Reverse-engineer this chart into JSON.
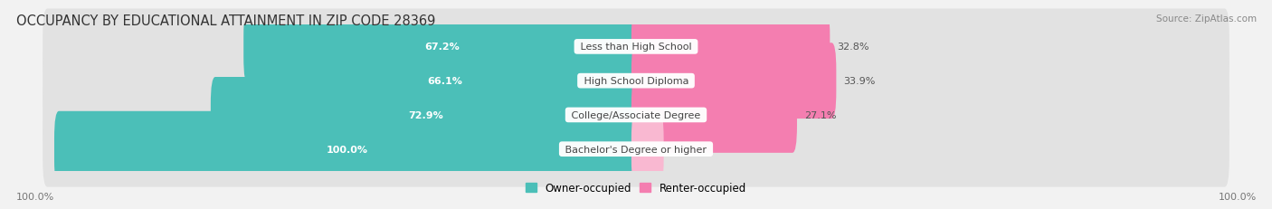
{
  "title": "OCCUPANCY BY EDUCATIONAL ATTAINMENT IN ZIP CODE 28369",
  "source": "Source: ZipAtlas.com",
  "categories": [
    "Less than High School",
    "High School Diploma",
    "College/Associate Degree",
    "Bachelor's Degree or higher"
  ],
  "owner_pct": [
    67.2,
    66.1,
    72.9,
    100.0
  ],
  "renter_pct": [
    32.8,
    33.9,
    27.1,
    0.0
  ],
  "owner_color": "#4BBFB8",
  "renter_color": "#F47EB0",
  "renter_color_light": "#F9B8D1",
  "bg_color": "#f2f2f2",
  "bar_bg_color": "#e2e2e2",
  "title_fontsize": 10.5,
  "label_fontsize": 8.0,
  "bar_height": 0.62,
  "x_left_label": "100.0%",
  "x_right_label": "100.0%"
}
